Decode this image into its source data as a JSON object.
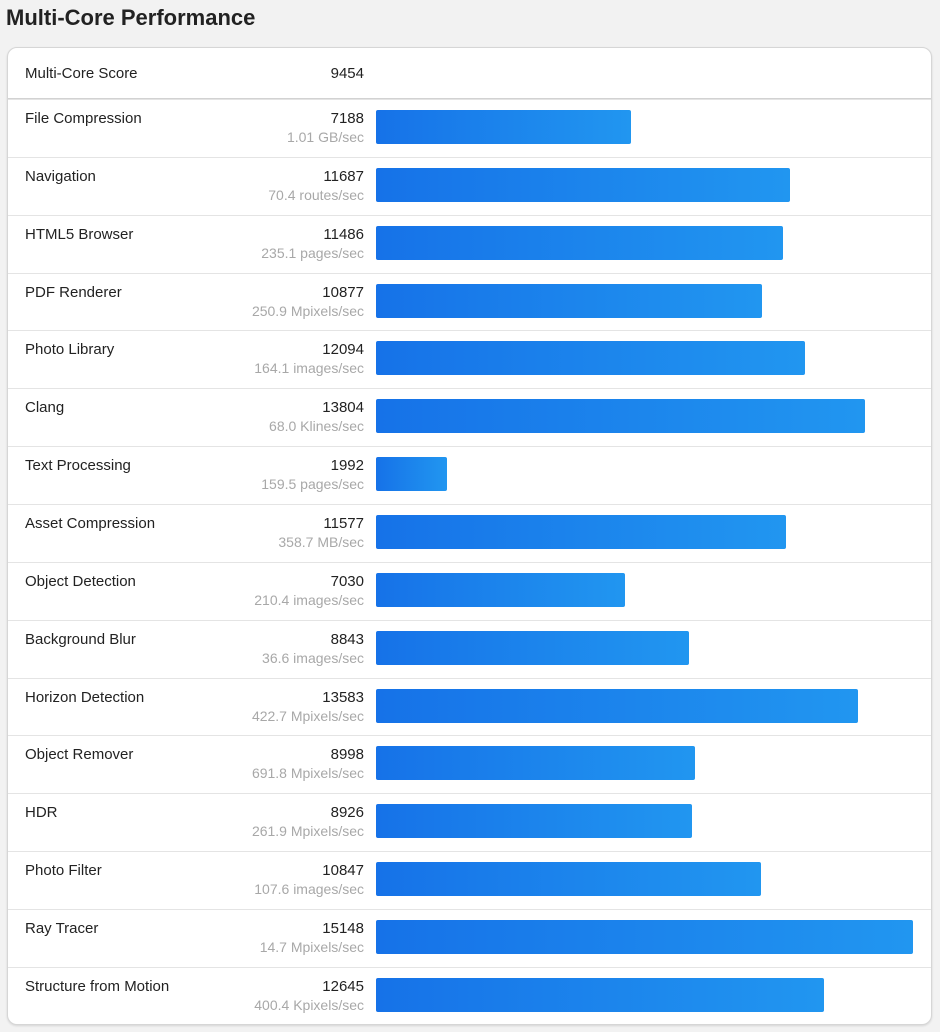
{
  "title": "Multi-Core Performance",
  "summary": {
    "label": "Multi-Core Score",
    "score": "9454"
  },
  "colors": {
    "bar_start": "#1672e8",
    "bar_end": "#2196f0"
  },
  "chart_data": {
    "type": "bar",
    "orientation": "horizontal",
    "title": "Multi-Core Performance",
    "categories": [
      "File Compression",
      "Navigation",
      "HTML5 Browser",
      "PDF Renderer",
      "Photo Library",
      "Clang",
      "Text Processing",
      "Asset Compression",
      "Object Detection",
      "Background Blur",
      "Horizon Detection",
      "Object Remover",
      "HDR",
      "Photo Filter",
      "Ray Tracer",
      "Structure from Motion"
    ],
    "values": [
      7188,
      11687,
      11486,
      10877,
      12094,
      13804,
      1992,
      11577,
      7030,
      8843,
      13583,
      8998,
      8926,
      10847,
      15148,
      12645
    ],
    "units": [
      "1.01 GB/sec",
      "70.4 routes/sec",
      "235.1 pages/sec",
      "250.9 Mpixels/sec",
      "164.1 images/sec",
      "68.0 Klines/sec",
      "159.5 pages/sec",
      "358.7 MB/sec",
      "210.4 images/sec",
      "36.6 images/sec",
      "422.7 Mpixels/sec",
      "691.8 Mpixels/sec",
      "261.9 Mpixels/sec",
      "107.6 images/sec",
      "14.7 Mpixels/sec",
      "400.4 Kpixels/sec"
    ],
    "xlim": [
      0,
      15148
    ],
    "grid": false
  }
}
